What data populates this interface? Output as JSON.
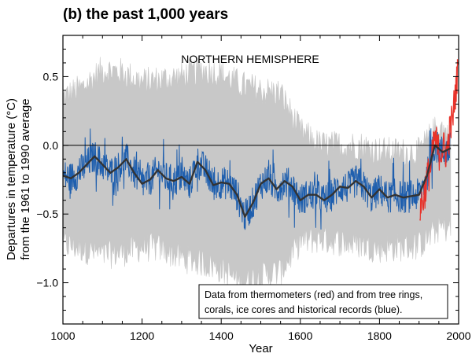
{
  "chart_data": {
    "type": "line",
    "title": "(b) the past 1,000 years",
    "region_label": "NORTHERN HEMISPHERE",
    "xlabel": "Year",
    "ylabel": [
      "Departures in temperature (°C)",
      "from the 1961 to 1990 average"
    ],
    "xlim": [
      1000,
      2000
    ],
    "ylim": [
      -1.3,
      0.8
    ],
    "x_ticks": [
      1000,
      1200,
      1400,
      1600,
      1800,
      2000
    ],
    "x_tick_labels": [
      "1000",
      "1200",
      "1400",
      "1600",
      "1800",
      "2000"
    ],
    "y_ticks": [
      0.5,
      0.0,
      -0.5,
      -1.0
    ],
    "y_tick_labels": [
      "0.5",
      "0.0",
      "−0.5",
      "−1.0"
    ],
    "zero_line": 0.0,
    "annotation": [
      "Data from thermometers (red) and from tree rings,",
      "corals, ice cores and historical records (blue)."
    ],
    "colors": {
      "proxy": "#1f5fae",
      "instrumental": "#e8322a",
      "smoothed": "#333333",
      "uncertainty": "#c8c8c8"
    },
    "series": [
      {
        "role": "smoothed-proxy",
        "x": [
          1000,
          1020,
          1040,
          1060,
          1080,
          1100,
          1120,
          1140,
          1160,
          1180,
          1200,
          1220,
          1240,
          1260,
          1280,
          1300,
          1320,
          1340,
          1360,
          1380,
          1400,
          1420,
          1440,
          1460,
          1480,
          1500,
          1520,
          1540,
          1560,
          1580,
          1600,
          1620,
          1640,
          1660,
          1680,
          1700,
          1720,
          1740,
          1760,
          1780,
          1800,
          1820,
          1840,
          1860,
          1880,
          1900,
          1920,
          1940,
          1960,
          1980
        ],
        "y": [
          -0.22,
          -0.24,
          -0.2,
          -0.14,
          -0.08,
          -0.14,
          -0.2,
          -0.16,
          -0.1,
          -0.2,
          -0.28,
          -0.25,
          -0.18,
          -0.24,
          -0.26,
          -0.23,
          -0.28,
          -0.12,
          -0.18,
          -0.29,
          -0.27,
          -0.28,
          -0.36,
          -0.52,
          -0.42,
          -0.28,
          -0.24,
          -0.32,
          -0.26,
          -0.3,
          -0.4,
          -0.36,
          -0.36,
          -0.4,
          -0.36,
          -0.3,
          -0.31,
          -0.26,
          -0.3,
          -0.38,
          -0.32,
          -0.38,
          -0.36,
          -0.38,
          -0.37,
          -0.36,
          -0.22,
          0.0,
          -0.05,
          -0.02
        ]
      },
      {
        "role": "proxy-annual-envelope",
        "x": [
          1000,
          1020,
          1040,
          1060,
          1080,
          1100,
          1120,
          1140,
          1160,
          1180,
          1200,
          1220,
          1240,
          1260,
          1280,
          1300,
          1320,
          1340,
          1360,
          1380,
          1400,
          1420,
          1440,
          1460,
          1480,
          1500,
          1520,
          1540,
          1560,
          1580,
          1600,
          1620,
          1640,
          1660,
          1680,
          1700,
          1720,
          1740,
          1760,
          1780,
          1800,
          1820,
          1840,
          1860,
          1880,
          1900,
          1920,
          1940,
          1960,
          1980
        ],
        "amplitude": 0.12
      },
      {
        "role": "instrumental",
        "x": [
          1902,
          1910,
          1920,
          1930,
          1940,
          1950,
          1960,
          1970,
          1980,
          1985,
          1990,
          1995,
          1998
        ],
        "y": [
          -0.45,
          -0.4,
          -0.25,
          -0.15,
          0.05,
          -0.05,
          -0.02,
          -0.05,
          0.15,
          0.18,
          0.35,
          0.45,
          0.6
        ]
      },
      {
        "role": "uncertainty-band",
        "x": [
          1000,
          1050,
          1100,
          1150,
          1200,
          1250,
          1300,
          1350,
          1400,
          1450,
          1500,
          1550,
          1600,
          1650,
          1700,
          1750,
          1800,
          1850,
          1900,
          1950,
          1980
        ],
        "upper": [
          0.35,
          0.42,
          0.55,
          0.53,
          0.46,
          0.48,
          0.5,
          0.55,
          0.52,
          0.44,
          0.4,
          0.38,
          0.1,
          0.0,
          0.0,
          0.0,
          -0.04,
          -0.05,
          -0.05,
          0.15,
          0.05
        ],
        "lower": [
          -0.72,
          -0.75,
          -0.8,
          -0.78,
          -0.74,
          -0.75,
          -0.82,
          -0.85,
          -0.9,
          -1.0,
          -0.95,
          -0.92,
          -0.7,
          -0.68,
          -0.7,
          -0.72,
          -0.75,
          -0.74,
          -0.73,
          -0.6,
          -0.6
        ]
      }
    ]
  }
}
